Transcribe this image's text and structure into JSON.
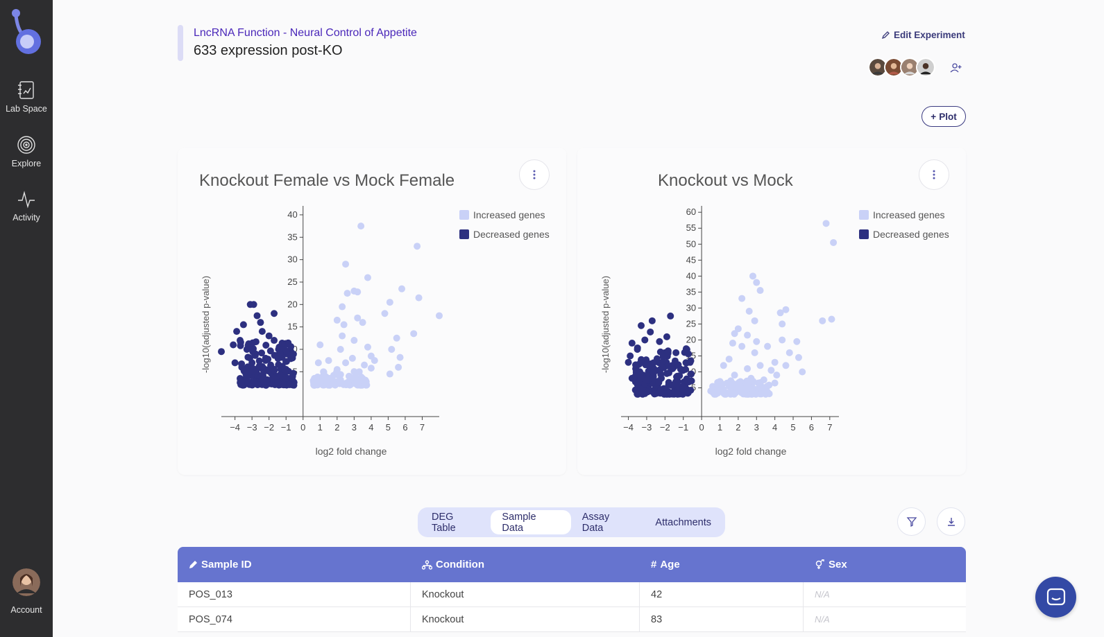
{
  "sidebar": {
    "items": [
      {
        "label": "Lab Space",
        "icon": "notebook-icon"
      },
      {
        "label": "Explore",
        "icon": "target-icon"
      },
      {
        "label": "Activity",
        "icon": "pulse-icon"
      }
    ],
    "account_label": "Account"
  },
  "header": {
    "project": "LncRNA Function - Neural Control of Appetite",
    "experiment": "633 expression post-KO",
    "edit_label": "Edit Experiment",
    "plot_label": "Plot"
  },
  "colors": {
    "increased": "#c9d1f7",
    "decreased": "#2d3080",
    "sidebar": "#2d2d2f",
    "accent": "#6674cf"
  },
  "chart_data": [
    {
      "type": "scatter",
      "title": "Knockout Female vs Mock Female",
      "xlabel": "log2 fold change",
      "ylabel": "-log10(adjusted p-value)",
      "xlim": [
        -4.8,
        8
      ],
      "ylim": [
        -5,
        42
      ],
      "xticks": [
        -4,
        -3,
        -2,
        -1,
        0,
        1,
        2,
        3,
        4,
        5,
        6,
        7
      ],
      "yticks": [
        5,
        10,
        15,
        20,
        25,
        30,
        35,
        40
      ],
      "legend": "top-right",
      "series": [
        {
          "name": "Increased genes",
          "points": [
            [
              3.4,
              37.5
            ],
            [
              6.7,
              33
            ],
            [
              2.5,
              29
            ],
            [
              3.8,
              26
            ],
            [
              5.8,
              23.5
            ],
            [
              3.0,
              23
            ],
            [
              3.2,
              22.8
            ],
            [
              2.6,
              22.5
            ],
            [
              6.8,
              21.5
            ],
            [
              5.1,
              20.5
            ],
            [
              2.3,
              19.5
            ],
            [
              4.8,
              18
            ],
            [
              8.0,
              17.5
            ],
            [
              3.2,
              17
            ],
            [
              2.0,
              16.5
            ],
            [
              3.5,
              16
            ],
            [
              2.4,
              15.5
            ],
            [
              6.5,
              13.5
            ],
            [
              2.3,
              13
            ],
            [
              5.5,
              12.5
            ],
            [
              3.0,
              12
            ],
            [
              1.0,
              11
            ],
            [
              3.8,
              10.5
            ],
            [
              5.2,
              10
            ],
            [
              2.2,
              10
            ],
            [
              4.0,
              8.5
            ],
            [
              5.7,
              8.2
            ],
            [
              2.9,
              8
            ],
            [
              4.2,
              7.5
            ],
            [
              5.6,
              6
            ],
            [
              1.5,
              7.5
            ],
            [
              0.9,
              7
            ],
            [
              2.5,
              7
            ],
            [
              3.6,
              6.5
            ],
            [
              4.0,
              5.8
            ],
            [
              3.3,
              5
            ],
            [
              2.0,
              5.5
            ],
            [
              1.2,
              5
            ],
            [
              5.1,
              4.5
            ],
            [
              1.8,
              4.2
            ],
            [
              2.7,
              4
            ],
            [
              3.5,
              3.5
            ],
            [
              1.0,
              3.5
            ],
            [
              2.2,
              3.2
            ],
            [
              0.6,
              3
            ]
          ]
        },
        {
          "name": "Decreased genes",
          "points": [
            [
              -3.1,
              20
            ],
            [
              -2.9,
              20
            ],
            [
              -1.7,
              18
            ],
            [
              -2.7,
              17.5
            ],
            [
              -2.5,
              16
            ],
            [
              -3.5,
              15.5
            ],
            [
              -2.4,
              14
            ],
            [
              -3.9,
              14
            ],
            [
              -3.7,
              12
            ],
            [
              -2.0,
              13
            ],
            [
              -1.7,
              12
            ],
            [
              -4.1,
              11
            ],
            [
              -4.8,
              9.5
            ],
            [
              -3.3,
              10
            ],
            [
              -2.8,
              9
            ],
            [
              -1.4,
              10.5
            ],
            [
              -2.2,
              8
            ],
            [
              -3.0,
              7
            ],
            [
              -4.0,
              7
            ],
            [
              -3.6,
              6
            ],
            [
              -2.6,
              6
            ],
            [
              -1.9,
              6.5
            ],
            [
              -1.2,
              6
            ],
            [
              -2.3,
              5
            ],
            [
              -3.2,
              4.5
            ],
            [
              -1.6,
              4
            ],
            [
              -2.8,
              3.5
            ],
            [
              -3.7,
              3.5
            ],
            [
              -2.0,
              3
            ],
            [
              -1.3,
              3
            ],
            [
              -0.6,
              3
            ]
          ]
        }
      ]
    },
    {
      "type": "scatter",
      "title": "Knockout vs Mock",
      "xlabel": "log2 fold change",
      "ylabel": "-log10(adjusted p-value)",
      "xlim": [
        -4.4,
        7.5
      ],
      "ylim": [
        -4,
        62
      ],
      "xticks": [
        -4,
        -3,
        -2,
        -1,
        0,
        1,
        2,
        3,
        4,
        5,
        6,
        7
      ],
      "yticks": [
        5,
        10,
        15,
        20,
        25,
        30,
        35,
        40,
        45,
        50,
        55,
        60
      ],
      "legend": "top-right",
      "series": [
        {
          "name": "Increased genes",
          "points": [
            [
              6.8,
              56.5
            ],
            [
              7.2,
              50.5
            ],
            [
              2.8,
              40
            ],
            [
              3.0,
              38
            ],
            [
              3.2,
              35.5
            ],
            [
              2.2,
              33
            ],
            [
              4.6,
              29.5
            ],
            [
              2.6,
              29
            ],
            [
              4.3,
              28.5
            ],
            [
              2.9,
              26
            ],
            [
              6.6,
              26
            ],
            [
              7.1,
              26.5
            ],
            [
              4.4,
              25
            ],
            [
              2.0,
              23.5
            ],
            [
              1.8,
              22
            ],
            [
              2.5,
              21.5
            ],
            [
              3.0,
              19.5
            ],
            [
              4.4,
              20
            ],
            [
              5.2,
              19.5
            ],
            [
              1.7,
              19
            ],
            [
              2.2,
              18
            ],
            [
              3.6,
              18
            ],
            [
              4.8,
              16
            ],
            [
              2.9,
              16
            ],
            [
              5.3,
              14.5
            ],
            [
              4.0,
              13
            ],
            [
              1.5,
              14
            ],
            [
              4.6,
              12
            ],
            [
              1.2,
              12
            ],
            [
              3.2,
              12
            ],
            [
              2.5,
              11
            ],
            [
              5.5,
              10
            ],
            [
              3.8,
              10.5
            ],
            [
              4.1,
              9
            ],
            [
              1.8,
              9
            ],
            [
              2.7,
              8
            ],
            [
              3.4,
              7.5
            ],
            [
              1.0,
              7
            ],
            [
              2.1,
              6.5
            ],
            [
              4.0,
              6.5
            ],
            [
              1.5,
              5.5
            ],
            [
              2.4,
              5
            ],
            [
              0.7,
              5
            ],
            [
              1.9,
              4.5
            ],
            [
              0.5,
              4
            ],
            [
              3.0,
              4
            ],
            [
              2.7,
              5.5
            ],
            [
              1.2,
              4.5
            ]
          ]
        },
        {
          "name": "Decreased genes",
          "points": [
            [
              -1.7,
              27.5
            ],
            [
              -2.7,
              26
            ],
            [
              -3.3,
              24.5
            ],
            [
              -2.8,
              22.5
            ],
            [
              -1.9,
              21
            ],
            [
              -3.1,
              20
            ],
            [
              -2.3,
              19.5
            ],
            [
              -3.8,
              19
            ],
            [
              -3.5,
              17.5
            ],
            [
              -2.0,
              16
            ],
            [
              -1.4,
              16
            ],
            [
              -3.9,
              15
            ],
            [
              -4.0,
              13
            ],
            [
              -3.3,
              13.5
            ],
            [
              -2.8,
              12.5
            ],
            [
              -1.6,
              12
            ],
            [
              -3.6,
              11
            ],
            [
              -2.5,
              10.5
            ],
            [
              -1.9,
              9.5
            ],
            [
              -3.2,
              9
            ],
            [
              -3.8,
              8
            ],
            [
              -2.2,
              8
            ],
            [
              -1.3,
              7
            ],
            [
              -2.9,
              6.5
            ],
            [
              -3.5,
              6
            ],
            [
              -1.8,
              6
            ],
            [
              -2.4,
              5.5
            ],
            [
              -1.2,
              5
            ],
            [
              -3.0,
              5
            ],
            [
              -2.0,
              4.5
            ],
            [
              -0.8,
              4.5
            ],
            [
              -1.5,
              4
            ]
          ]
        }
      ]
    }
  ],
  "tabs": [
    {
      "label": "DEG Table",
      "active": false
    },
    {
      "label": "Sample Data",
      "active": true
    },
    {
      "label": "Assay Data",
      "active": false
    },
    {
      "label": "Attachments",
      "active": false
    }
  ],
  "table": {
    "columns": [
      {
        "label": "Sample ID",
        "icon": "pencil-icon"
      },
      {
        "label": "Condition",
        "icon": "hierarchy-icon"
      },
      {
        "label": "Age",
        "icon": "hash-icon"
      },
      {
        "label": "Sex",
        "icon": "gender-icon"
      }
    ],
    "rows": [
      [
        "POS_013",
        "Knockout",
        "42",
        "N/A"
      ],
      [
        "POS_074",
        "Knockout",
        "83",
        "N/A"
      ]
    ]
  }
}
